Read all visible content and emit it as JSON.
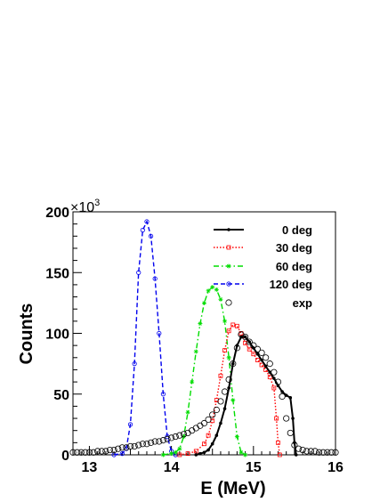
{
  "chart_data": {
    "type": "line",
    "title": "",
    "xlabel": "E (MeV)",
    "ylabel": "Counts",
    "y_exponent_label": "×10",
    "y_exponent_power": "3",
    "xlim": [
      12.8,
      16.0
    ],
    "ylim": [
      0,
      200
    ],
    "x_ticks": [
      "13",
      "14",
      "15",
      "16"
    ],
    "y_ticks": [
      "0",
      "50",
      "100",
      "150",
      "200"
    ],
    "grid": false,
    "legend_position": "top-right",
    "series": [
      {
        "name": "0 deg",
        "color": "#000000",
        "style": "solid",
        "marker": "filled-dot",
        "points": [
          [
            14.3,
            0
          ],
          [
            14.35,
            1
          ],
          [
            14.4,
            2
          ],
          [
            14.45,
            4
          ],
          [
            14.5,
            9
          ],
          [
            14.55,
            16
          ],
          [
            14.6,
            26
          ],
          [
            14.65,
            38
          ],
          [
            14.7,
            55
          ],
          [
            14.75,
            75
          ],
          [
            14.8,
            90
          ],
          [
            14.85,
            97
          ],
          [
            14.9,
            97
          ],
          [
            14.95,
            93
          ],
          [
            15.0,
            88
          ],
          [
            15.05,
            83
          ],
          [
            15.1,
            78
          ],
          [
            15.15,
            73
          ],
          [
            15.2,
            68
          ],
          [
            15.25,
            63
          ],
          [
            15.3,
            57
          ],
          [
            15.35,
            52
          ],
          [
            15.4,
            49
          ],
          [
            15.45,
            47
          ],
          [
            15.48,
            30
          ],
          [
            15.5,
            10
          ],
          [
            15.52,
            0
          ]
        ]
      },
      {
        "name": "30 deg",
        "color": "#ff0000",
        "style": "dotted",
        "marker": "open-square",
        "points": [
          [
            14.1,
            0
          ],
          [
            14.2,
            1
          ],
          [
            14.3,
            3
          ],
          [
            14.4,
            9
          ],
          [
            14.45,
            16
          ],
          [
            14.5,
            28
          ],
          [
            14.55,
            45
          ],
          [
            14.6,
            65
          ],
          [
            14.65,
            86
          ],
          [
            14.7,
            102
          ],
          [
            14.75,
            107
          ],
          [
            14.8,
            106
          ],
          [
            14.85,
            100
          ],
          [
            14.9,
            92
          ],
          [
            14.95,
            87
          ],
          [
            15.0,
            83
          ],
          [
            15.05,
            78
          ],
          [
            15.1,
            74
          ],
          [
            15.15,
            70
          ],
          [
            15.2,
            64
          ],
          [
            15.25,
            55
          ],
          [
            15.28,
            30
          ],
          [
            15.3,
            10
          ],
          [
            15.32,
            0
          ]
        ]
      },
      {
        "name": "60 deg",
        "color": "#00dd00",
        "style": "dash-dot",
        "marker": "star",
        "points": [
          [
            13.9,
            0
          ],
          [
            14.0,
            1
          ],
          [
            14.05,
            2
          ],
          [
            14.1,
            5
          ],
          [
            14.15,
            15
          ],
          [
            14.2,
            35
          ],
          [
            14.25,
            60
          ],
          [
            14.3,
            85
          ],
          [
            14.35,
            108
          ],
          [
            14.4,
            125
          ],
          [
            14.45,
            135
          ],
          [
            14.5,
            138
          ],
          [
            14.55,
            136
          ],
          [
            14.6,
            128
          ],
          [
            14.65,
            110
          ],
          [
            14.7,
            80
          ],
          [
            14.75,
            45
          ],
          [
            14.8,
            15
          ],
          [
            14.85,
            2
          ],
          [
            14.9,
            0
          ]
        ]
      },
      {
        "name": "120 deg",
        "color": "#0000ee",
        "style": "dashed",
        "marker": "open-circle",
        "points": [
          [
            13.3,
            0
          ],
          [
            13.4,
            1
          ],
          [
            13.45,
            5
          ],
          [
            13.5,
            25
          ],
          [
            13.55,
            75
          ],
          [
            13.6,
            150
          ],
          [
            13.65,
            185
          ],
          [
            13.7,
            192
          ],
          [
            13.75,
            180
          ],
          [
            13.8,
            145
          ],
          [
            13.85,
            100
          ],
          [
            13.9,
            50
          ],
          [
            13.95,
            15
          ],
          [
            14.0,
            3
          ],
          [
            14.05,
            0
          ]
        ]
      },
      {
        "name": "exp",
        "color": "#000000",
        "style": "none",
        "marker": "open-circle",
        "points": [
          [
            12.8,
            2
          ],
          [
            12.85,
            2
          ],
          [
            12.9,
            2
          ],
          [
            12.95,
            2
          ],
          [
            13.0,
            2
          ],
          [
            13.05,
            2
          ],
          [
            13.1,
            3
          ],
          [
            13.15,
            3
          ],
          [
            13.2,
            3
          ],
          [
            13.25,
            4
          ],
          [
            13.3,
            4
          ],
          [
            13.35,
            5
          ],
          [
            13.4,
            6
          ],
          [
            13.45,
            6
          ],
          [
            13.5,
            7
          ],
          [
            13.55,
            7
          ],
          [
            13.6,
            8
          ],
          [
            13.65,
            9
          ],
          [
            13.7,
            9
          ],
          [
            13.75,
            10
          ],
          [
            13.8,
            11
          ],
          [
            13.85,
            11
          ],
          [
            13.9,
            12
          ],
          [
            13.95,
            13
          ],
          [
            14.0,
            14
          ],
          [
            14.05,
            15
          ],
          [
            14.1,
            16
          ],
          [
            14.15,
            17
          ],
          [
            14.2,
            18
          ],
          [
            14.25,
            20
          ],
          [
            14.3,
            22
          ],
          [
            14.35,
            24
          ],
          [
            14.4,
            26
          ],
          [
            14.45,
            29
          ],
          [
            14.5,
            33
          ],
          [
            14.55,
            37
          ],
          [
            14.6,
            44
          ],
          [
            14.65,
            52
          ],
          [
            14.7,
            62
          ],
          [
            14.75,
            75
          ],
          [
            14.8,
            88
          ],
          [
            14.85,
            99
          ],
          [
            14.9,
            97
          ],
          [
            14.95,
            93
          ],
          [
            15.0,
            90
          ],
          [
            15.05,
            87
          ],
          [
            15.1,
            84
          ],
          [
            15.15,
            80
          ],
          [
            15.2,
            75
          ],
          [
            15.25,
            68
          ],
          [
            15.3,
            60
          ],
          [
            15.35,
            48
          ],
          [
            15.4,
            30
          ],
          [
            15.45,
            18
          ],
          [
            15.5,
            8
          ],
          [
            15.55,
            5
          ],
          [
            15.6,
            4
          ],
          [
            15.65,
            3
          ],
          [
            15.7,
            3
          ],
          [
            15.75,
            3
          ],
          [
            15.8,
            2
          ],
          [
            15.85,
            2
          ],
          [
            15.9,
            2
          ],
          [
            15.95,
            2
          ],
          [
            16.0,
            2
          ]
        ]
      }
    ]
  }
}
